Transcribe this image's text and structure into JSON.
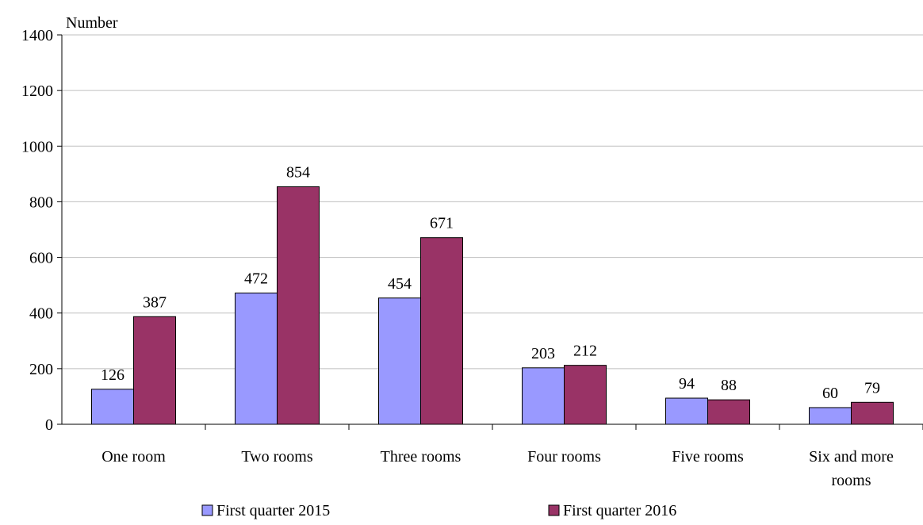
{
  "chart_data": {
    "type": "bar",
    "ylabel": "Number",
    "ylim": [
      0,
      1400
    ],
    "yticks": [
      0,
      200,
      400,
      600,
      800,
      1000,
      1200,
      1400
    ],
    "grid": true,
    "legend_position": "bottom",
    "categories": [
      [
        "One room"
      ],
      [
        "Two rooms"
      ],
      [
        "Three rooms"
      ],
      [
        "Four rooms"
      ],
      [
        "Five rooms"
      ],
      [
        "Six and more",
        "rooms"
      ]
    ],
    "series": [
      {
        "name": "First quarter 2015",
        "color": "#9999ff",
        "values": [
          126,
          472,
          454,
          203,
          94,
          60
        ]
      },
      {
        "name": "First quarter 2016",
        "color": "#993366",
        "values": [
          387,
          854,
          671,
          212,
          88,
          79
        ]
      }
    ]
  }
}
